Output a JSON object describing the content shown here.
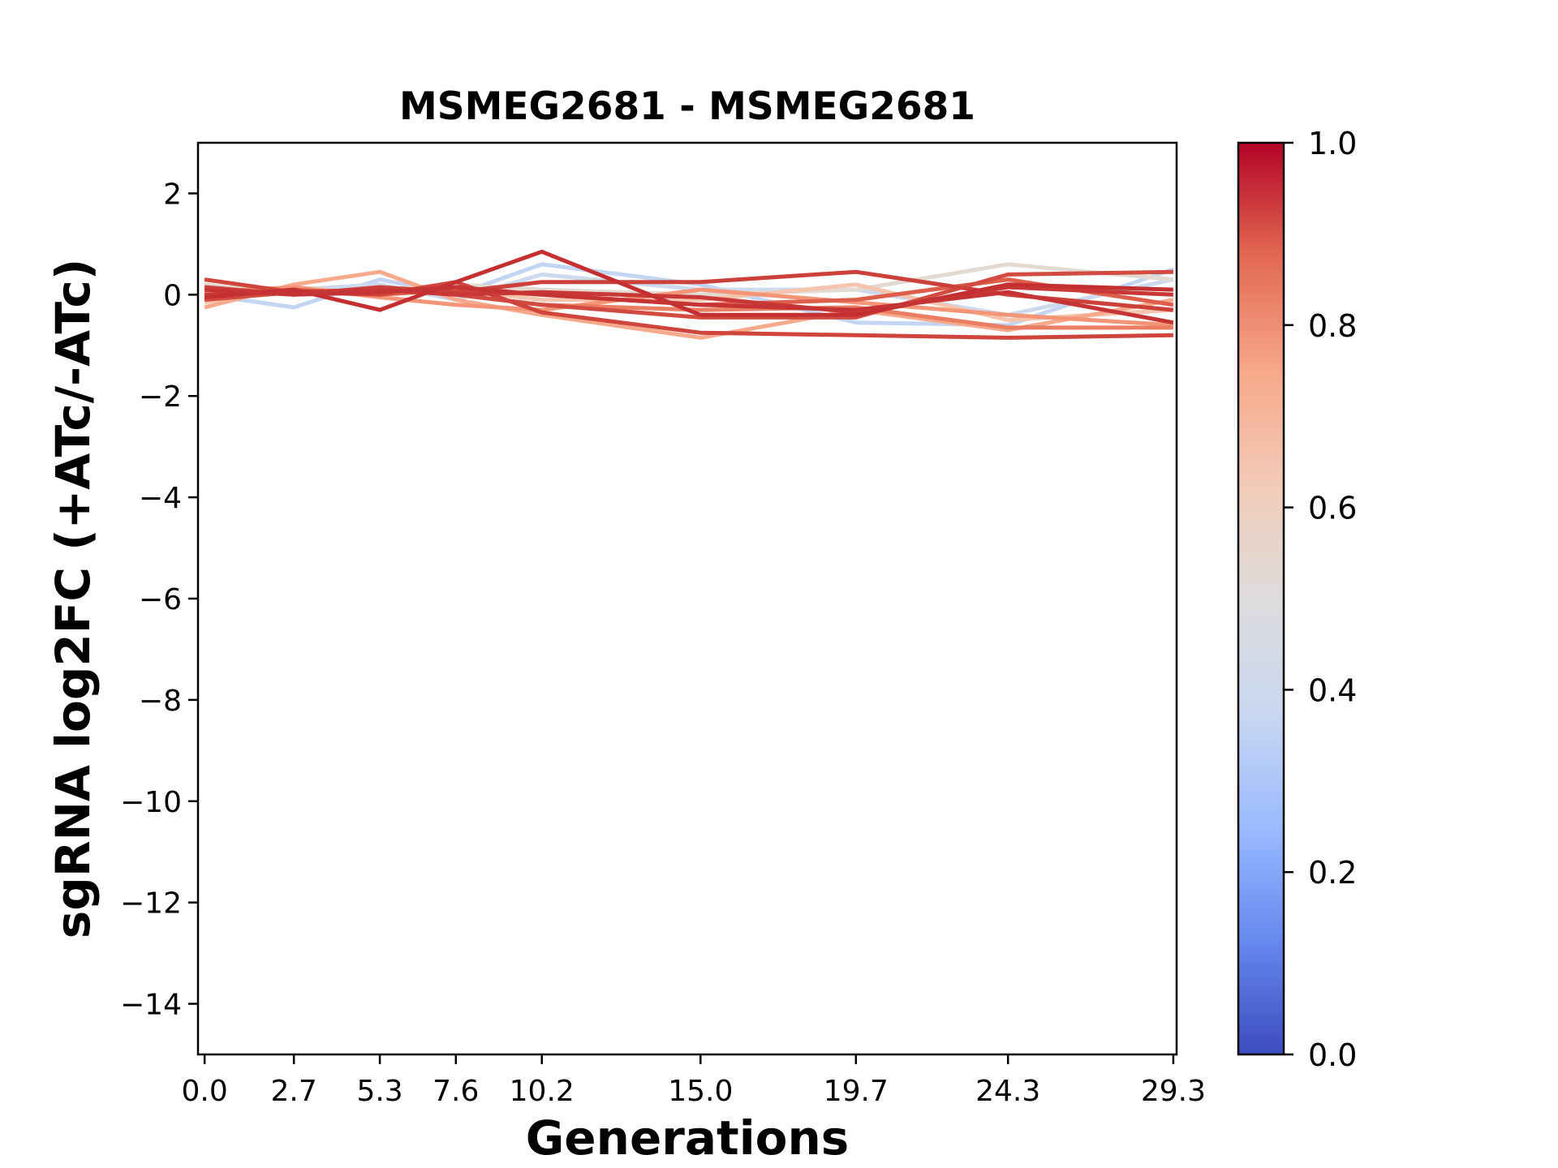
{
  "chart_data": {
    "type": "line",
    "title": "MSMEG2681 - MSMEG2681",
    "xlabel": "Generations",
    "ylabel": "sgRNA log2FC (+ATc/-ATc)",
    "x": [
      0.0,
      2.7,
      5.3,
      7.6,
      10.2,
      15.0,
      19.7,
      24.3,
      29.3
    ],
    "x_tick_labels": [
      "0.0",
      "2.7",
      "5.3",
      "7.6",
      "10.2",
      "15.0",
      "19.7",
      "24.3",
      "29.3"
    ],
    "xlim": [
      -0.2,
      29.4
    ],
    "ylim": [
      -15,
      3
    ],
    "y_ticks": [
      2,
      0,
      -2,
      -4,
      -6,
      -8,
      -10,
      -12,
      -14
    ],
    "y_tick_labels": [
      "2",
      "0",
      "−2",
      "−4",
      "−6",
      "−8",
      "−10",
      "−12",
      "−14"
    ],
    "grid": false,
    "colormap": "coolwarm",
    "colorbar": {
      "range": [
        0.0,
        1.0
      ],
      "ticks": [
        0.0,
        0.2,
        0.4,
        0.6,
        0.8,
        1.0
      ],
      "tick_labels": [
        "0.0",
        "0.2",
        "0.4",
        "0.6",
        "0.8",
        "1.0"
      ],
      "stops": [
        "#3b4cc0",
        "#6788ee",
        "#9abbff",
        "#c9d7f0",
        "#dddcdc",
        "#f2cbb7",
        "#f7a889",
        "#e26952",
        "#b40426"
      ]
    },
    "series": [
      {
        "strength": 0.38,
        "color": "#c4d5f3",
        "values": [
          0.0,
          -0.25,
          0.3,
          0.0,
          0.6,
          0.2,
          -0.55,
          -0.6,
          0.5
        ]
      },
      {
        "strength": 0.42,
        "color": "#cdd9ec",
        "values": [
          -0.1,
          0.1,
          0.2,
          -0.1,
          0.4,
          0.1,
          0.1,
          -0.4,
          0.3
        ]
      },
      {
        "strength": 0.55,
        "color": "#e2d9d1",
        "values": [
          0.2,
          0.0,
          0.1,
          0.2,
          0.1,
          0.0,
          0.1,
          0.6,
          0.3
        ]
      },
      {
        "strength": 0.65,
        "color": "#f4c4ad",
        "values": [
          -0.15,
          0.15,
          0.0,
          0.1,
          -0.1,
          -0.1,
          0.2,
          -0.5,
          -0.3
        ]
      },
      {
        "strength": 0.72,
        "color": "#f7a98b",
        "values": [
          -0.25,
          0.2,
          0.45,
          -0.1,
          -0.4,
          -0.85,
          -0.3,
          -0.7,
          -0.1
        ]
      },
      {
        "strength": 0.76,
        "color": "#f39576",
        "values": [
          0.05,
          0.15,
          -0.05,
          -0.2,
          -0.3,
          0.1,
          -0.15,
          -0.4,
          -0.6
        ]
      },
      {
        "strength": 0.8,
        "color": "#eb7d62",
        "values": [
          0.1,
          0.05,
          0.1,
          0.0,
          -0.2,
          -0.3,
          -0.25,
          -0.65,
          -0.65
        ]
      },
      {
        "strength": 0.85,
        "color": "#dd5f4b",
        "values": [
          0.0,
          0.1,
          0.0,
          0.1,
          0.0,
          -0.2,
          -0.1,
          0.3,
          -0.2
        ]
      },
      {
        "strength": 0.88,
        "color": "#d24b40",
        "values": [
          -0.1,
          0.05,
          0.1,
          0.0,
          -0.2,
          -0.45,
          -0.45,
          0.4,
          0.45
        ]
      },
      {
        "strength": 0.9,
        "color": "#cf453c",
        "values": [
          0.3,
          0.05,
          0.0,
          0.25,
          -0.35,
          -0.75,
          -0.8,
          -0.85,
          -0.8
        ]
      },
      {
        "strength": 0.92,
        "color": "#cc403a",
        "values": [
          0.15,
          0.0,
          0.15,
          0.05,
          0.25,
          0.25,
          0.45,
          0.0,
          -0.3
        ]
      },
      {
        "strength": 0.93,
        "color": "#c83836",
        "values": [
          0.0,
          0.05,
          0.1,
          0.0,
          0.05,
          -0.05,
          -0.35,
          0.15,
          0.0
        ]
      },
      {
        "strength": 0.95,
        "color": "#c43032",
        "values": [
          -0.05,
          0.1,
          -0.3,
          0.25,
          0.85,
          -0.4,
          -0.4,
          0.2,
          0.1
        ]
      },
      {
        "strength": 0.94,
        "color": "#c53334",
        "values": [
          0.1,
          0.0,
          0.05,
          0.15,
          0.0,
          -0.2,
          -0.3,
          0.05,
          -0.55
        ]
      }
    ]
  }
}
